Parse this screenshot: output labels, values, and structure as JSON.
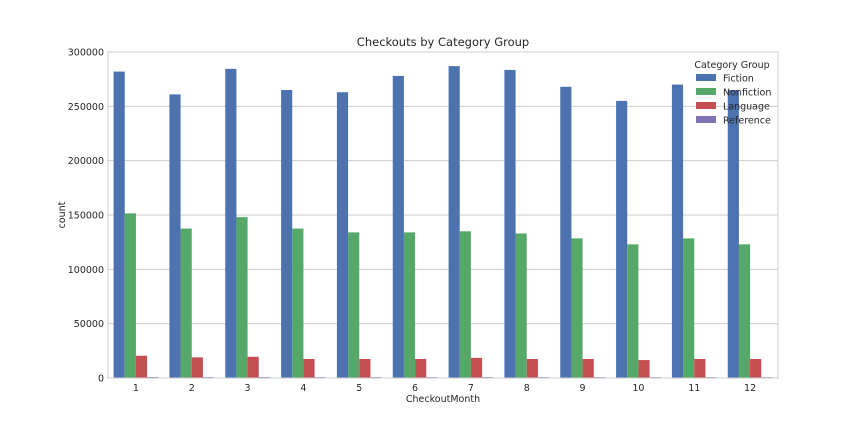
{
  "chart_data": {
    "type": "bar",
    "title": "Checkouts by Category Group",
    "xlabel": "CheckoutMonth",
    "ylabel": "count",
    "categories": [
      "1",
      "2",
      "3",
      "4",
      "5",
      "6",
      "7",
      "8",
      "9",
      "10",
      "11",
      "12"
    ],
    "ylim": [
      0,
      300000
    ],
    "yticks": [
      0,
      50000,
      100000,
      150000,
      200000,
      250000,
      300000
    ],
    "ytick_labels": [
      "0",
      "50000",
      "100000",
      "150000",
      "200000",
      "250000",
      "300000"
    ],
    "grid": true,
    "legend": {
      "title": "Category Group",
      "placement": "top-right"
    },
    "series": [
      {
        "name": "Fiction",
        "color": "#4c72b0",
        "values": [
          282000,
          261000,
          284500,
          265000,
          263000,
          278000,
          287000,
          283500,
          268000,
          255000,
          270000,
          265000
        ]
      },
      {
        "name": "Nonfiction",
        "color": "#55a868",
        "values": [
          151500,
          137500,
          148000,
          137500,
          134000,
          134000,
          135000,
          133000,
          128500,
          123000,
          128500,
          123000
        ]
      },
      {
        "name": "Language",
        "color": "#c44e52",
        "values": [
          20500,
          19000,
          19500,
          17500,
          17500,
          17500,
          18500,
          17500,
          17500,
          16500,
          17500,
          17500
        ]
      },
      {
        "name": "Reference",
        "color": "#8172b2",
        "values": [
          900,
          800,
          900,
          800,
          800,
          800,
          850,
          800,
          800,
          750,
          800,
          750
        ]
      }
    ]
  }
}
